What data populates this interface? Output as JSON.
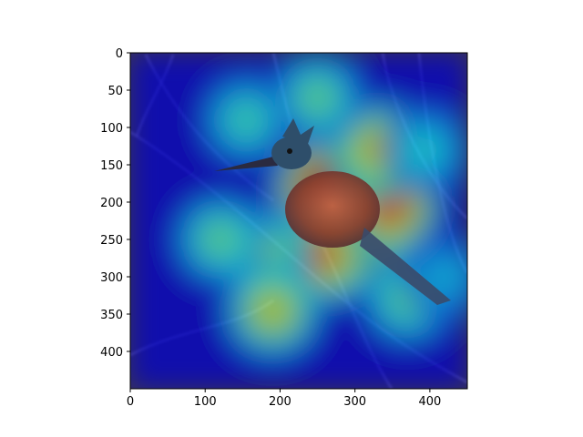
{
  "chart_data": {
    "type": "heatmap",
    "title": "",
    "xlabel": "",
    "ylabel": "",
    "xlim": [
      0,
      450
    ],
    "ylim": [
      450,
      0
    ],
    "x_ticks": [
      0,
      100,
      200,
      300,
      400
    ],
    "y_ticks": [
      0,
      50,
      100,
      150,
      200,
      250,
      300,
      350,
      400
    ],
    "grid": false,
    "legend": "none",
    "colormap": "jet",
    "image_description_id": "kingfisher-photo-heatmap-overlay",
    "colors": {
      "background_photo": "#3b3550",
      "jet_low": "#1e1e8c",
      "jet_mid": "#36c2d0",
      "jet_mid2": "#e8d23a",
      "jet_high": "#c41c10"
    },
    "heat_peaks": [
      {
        "x": 265,
        "y": 185,
        "level": 1.0
      },
      {
        "x": 300,
        "y": 250,
        "level": 0.95
      },
      {
        "x": 345,
        "y": 205,
        "level": 0.85
      },
      {
        "x": 255,
        "y": 270,
        "level": 0.8
      },
      {
        "x": 330,
        "y": 130,
        "level": 0.7
      },
      {
        "x": 180,
        "y": 270,
        "level": 0.55
      },
      {
        "x": 120,
        "y": 250,
        "level": 0.5
      },
      {
        "x": 190,
        "y": 345,
        "level": 0.65
      },
      {
        "x": 250,
        "y": 60,
        "level": 0.5
      },
      {
        "x": 155,
        "y": 90,
        "level": 0.45
      },
      {
        "x": 395,
        "y": 130,
        "level": 0.4
      },
      {
        "x": 370,
        "y": 330,
        "level": 0.5
      },
      {
        "x": 420,
        "y": 300,
        "level": 0.35
      }
    ]
  }
}
